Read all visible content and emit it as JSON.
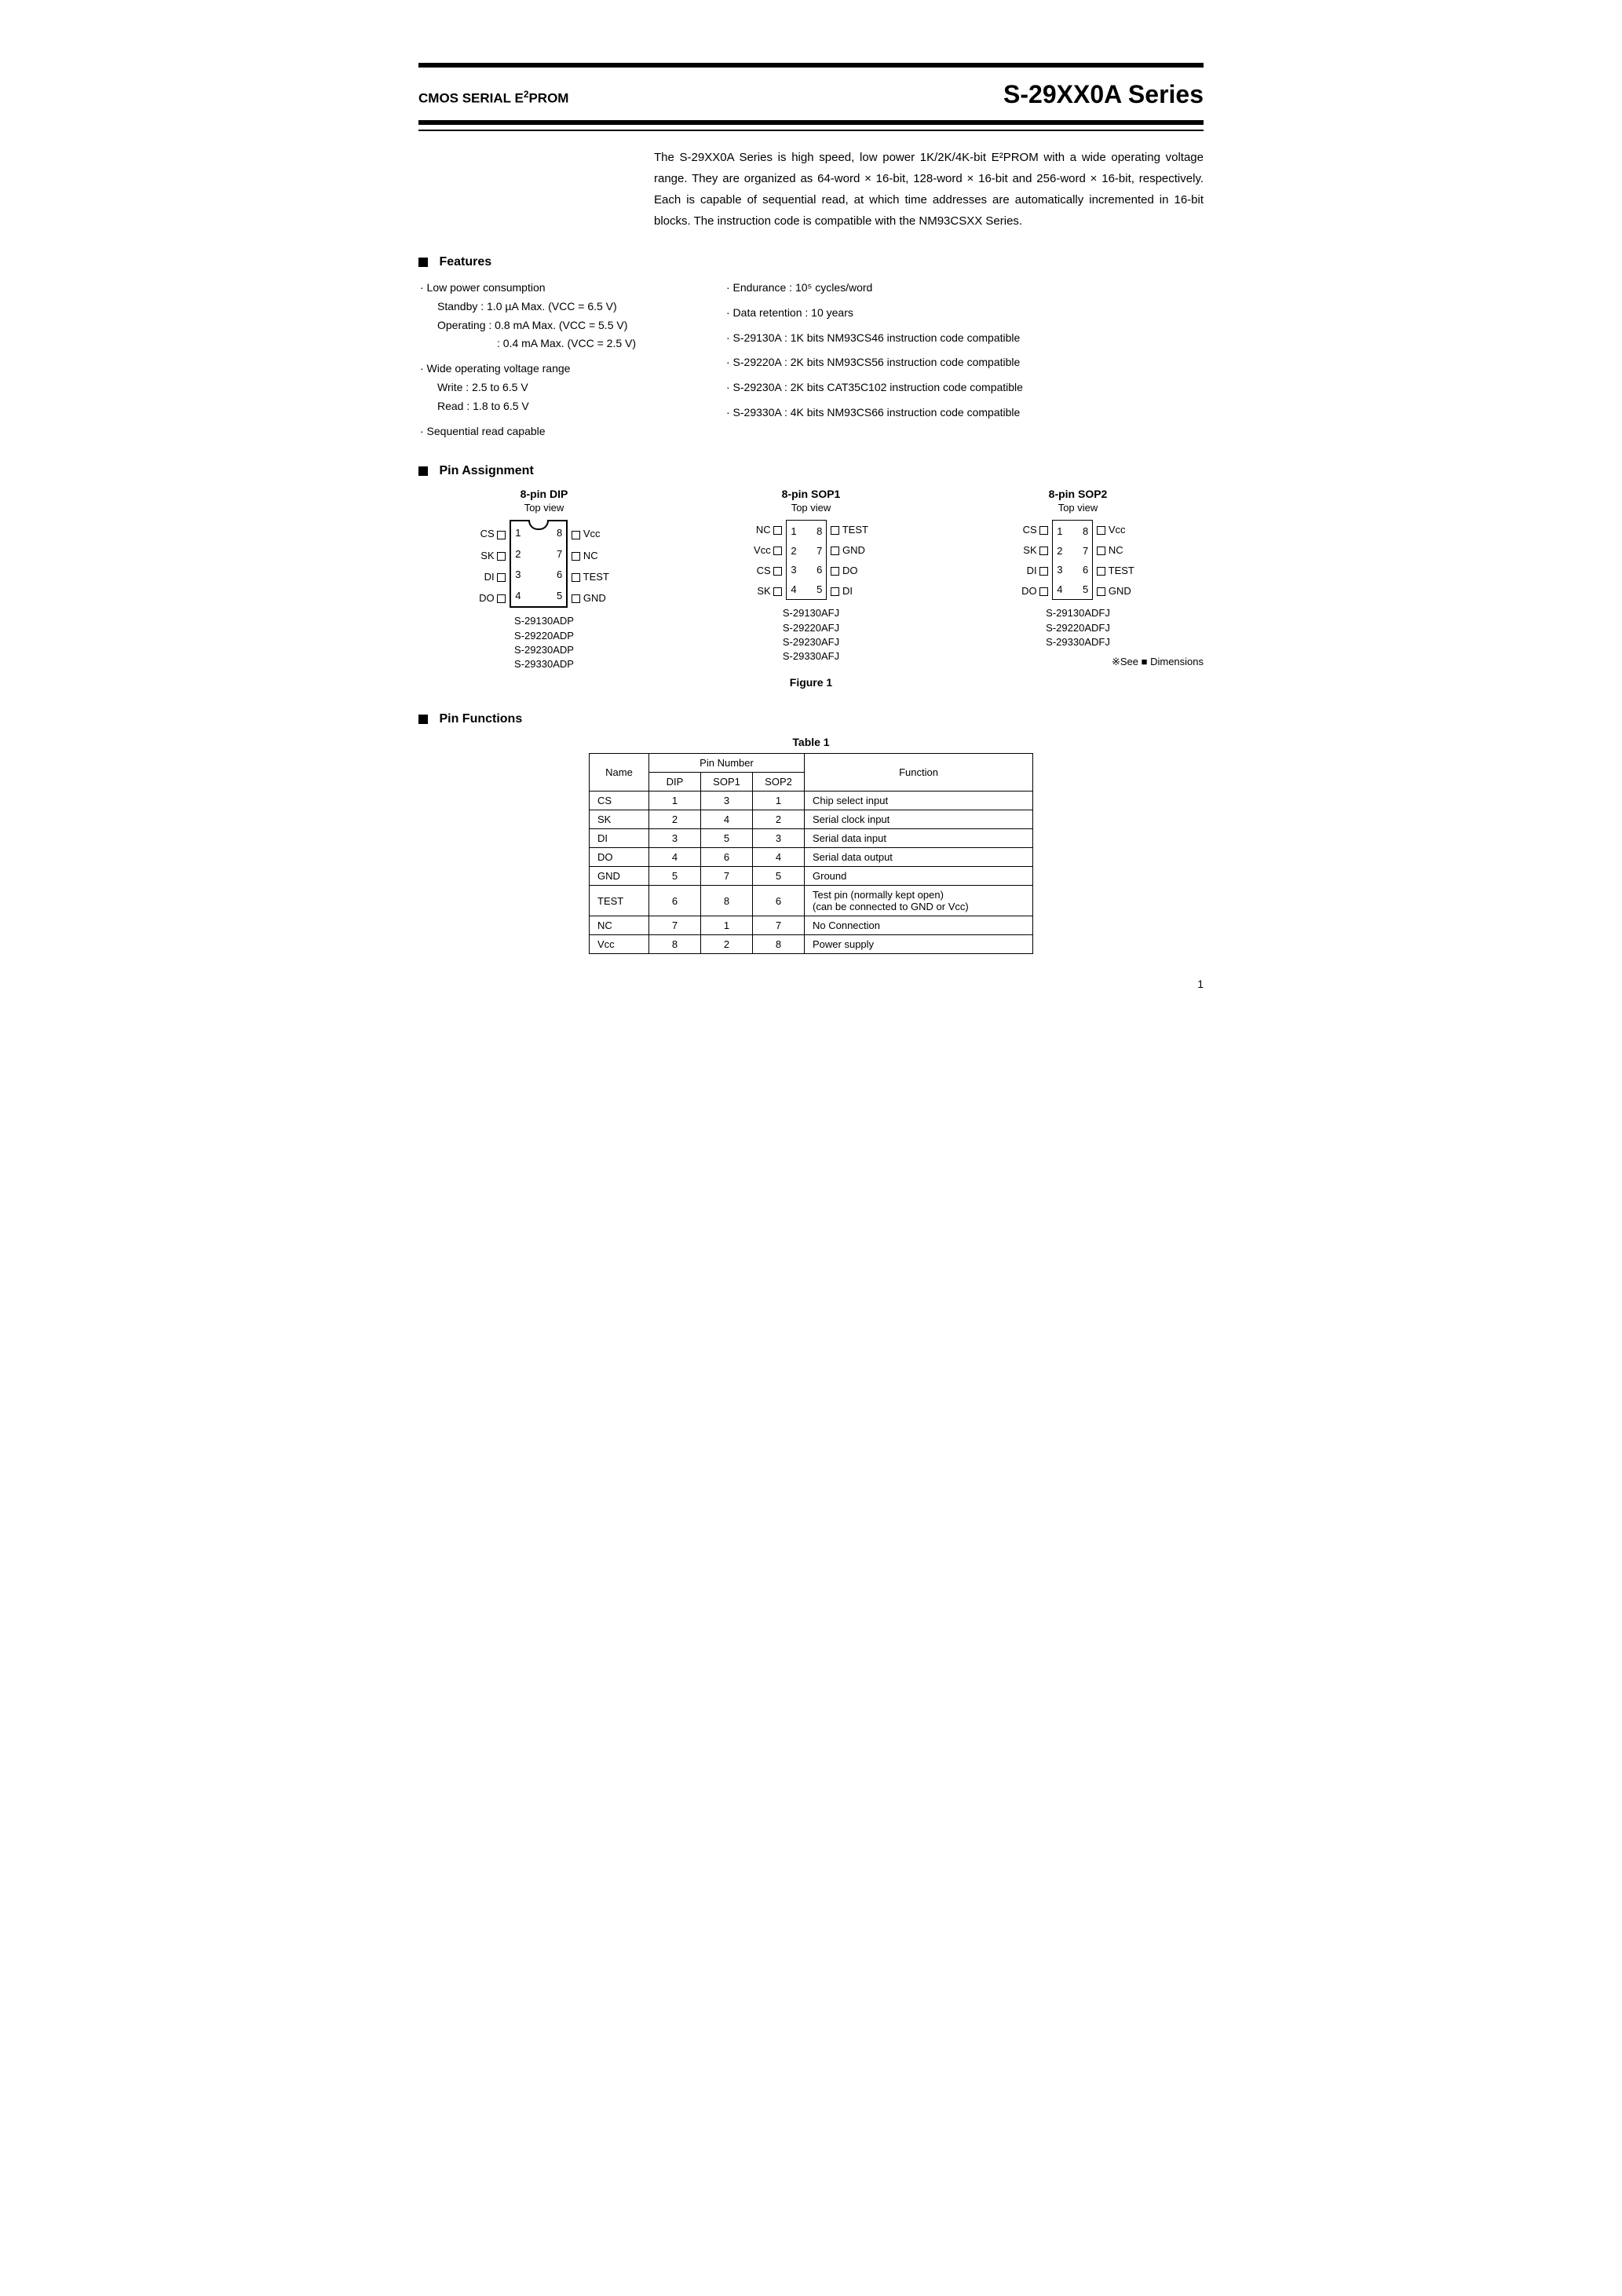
{
  "header": {
    "subtitle_pre": "CMOS SERIAL E",
    "subtitle_sup": "2",
    "subtitle_post": "PROM",
    "title": "S-29XX0A Series"
  },
  "intro": "The S-29XX0A Series is high speed, low power 1K/2K/4K-bit E²PROM with a wide operating voltage range. They are organized as 64-word × 16-bit, 128-word × 16-bit and 256-word × 16-bit, respectively. Each is capable of sequential read, at which time addresses are automatically incremented in 16-bit blocks. The instruction code is compatible with the NM93CSXX Series.",
  "sections": {
    "features": "Features",
    "pinassign": "Pin Assignment",
    "pinfunc": "Pin Functions"
  },
  "features": {
    "left": {
      "l0": "· Low power consumption",
      "l1": "Standby   : 1.0 µA Max.  (VCC = 6.5 V)",
      "l2": "Operating : 0.8 mA Max. (VCC = 5.5 V)",
      "l3": ": 0.4 mA Max. (VCC = 2.5 V)",
      "l4": "· Wide operating voltage range",
      "l5": "Write        : 2.5 to 6.5 V",
      "l6": "Read        : 1.8 to 6.5 V",
      "l7": "· Sequential read capable"
    },
    "right": {
      "r0": "· Endurance : 10⁵ cycles/word",
      "r1": "· Data retention : 10 years",
      "r2": "· S-29130A : 1K bits NM93CS46 instruction code compatible",
      "r3": "· S-29220A : 2K bits NM93CS56 instruction code compatible",
      "r4": "· S-29230A : 2K bits CAT35C102 instruction code compatible",
      "r5": "· S-29330A : 4K bits NM93CS66 instruction code compatible"
    }
  },
  "pkg": {
    "dip": {
      "title": "8-pin DIP",
      "sub": "Top view",
      "left": [
        "CS",
        "SK",
        "DI",
        "DO"
      ],
      "right": [
        "Vᴄᴄ",
        "NC",
        "TEST",
        "GND"
      ],
      "lnum": [
        "1",
        "2",
        "3",
        "4"
      ],
      "rnum": [
        "8",
        "7",
        "6",
        "5"
      ],
      "parts": [
        "S-29130ADP",
        "S-29220ADP",
        "S-29230ADP",
        "S-29330ADP"
      ]
    },
    "sop1": {
      "title": "8-pin SOP1",
      "sub": "Top view",
      "left": [
        "NC",
        "Vᴄᴄ",
        "CS",
        "SK"
      ],
      "right": [
        "TEST",
        "GND",
        "DO",
        "DI"
      ],
      "lnum": [
        "1",
        "2",
        "3",
        "4"
      ],
      "rnum": [
        "8",
        "7",
        "6",
        "5"
      ],
      "parts": [
        "S-29130AFJ",
        "S-29220AFJ",
        "S-29230AFJ",
        "S-29330AFJ"
      ]
    },
    "sop2": {
      "title": "8-pin SOP2",
      "sub": "Top view",
      "left": [
        "CS",
        "SK",
        "DI",
        "DO"
      ],
      "right": [
        "Vᴄᴄ",
        "NC",
        "TEST",
        "GND"
      ],
      "lnum": [
        "1",
        "2",
        "3",
        "4"
      ],
      "rnum": [
        "8",
        "7",
        "6",
        "5"
      ],
      "parts": [
        "S-29130ADFJ",
        "S-29220ADFJ",
        "S-29330ADFJ"
      ]
    }
  },
  "fig1": "Figure 1",
  "see_dim": "※See ■ Dimensions",
  "table1": {
    "caption": "Table 1",
    "head": {
      "name": "Name",
      "pinnum": "Pin Number",
      "dip": "DIP",
      "sop1": "SOP1",
      "sop2": "SOP2",
      "func": "Function"
    },
    "rows": [
      {
        "name": "CS",
        "dip": "1",
        "sop1": "3",
        "sop2": "1",
        "func": "Chip select input"
      },
      {
        "name": "SK",
        "dip": "2",
        "sop1": "4",
        "sop2": "2",
        "func": "Serial clock input"
      },
      {
        "name": "DI",
        "dip": "3",
        "sop1": "5",
        "sop2": "3",
        "func": "Serial data input"
      },
      {
        "name": "DO",
        "dip": "4",
        "sop1": "6",
        "sop2": "4",
        "func": "Serial data output"
      },
      {
        "name": "GND",
        "dip": "5",
        "sop1": "7",
        "sop2": "5",
        "func": "Ground"
      },
      {
        "name": "TEST",
        "dip": "6",
        "sop1": "8",
        "sop2": "6",
        "func": "Test pin (normally kept open)\n(can be connected to GND or Vcc)"
      },
      {
        "name": "NC",
        "dip": "7",
        "sop1": "1",
        "sop2": "7",
        "func": "No Connection"
      },
      {
        "name": "Vᴄᴄ",
        "dip": "8",
        "sop1": "2",
        "sop2": "8",
        "func": "Power supply"
      }
    ]
  },
  "pagenum": "1"
}
